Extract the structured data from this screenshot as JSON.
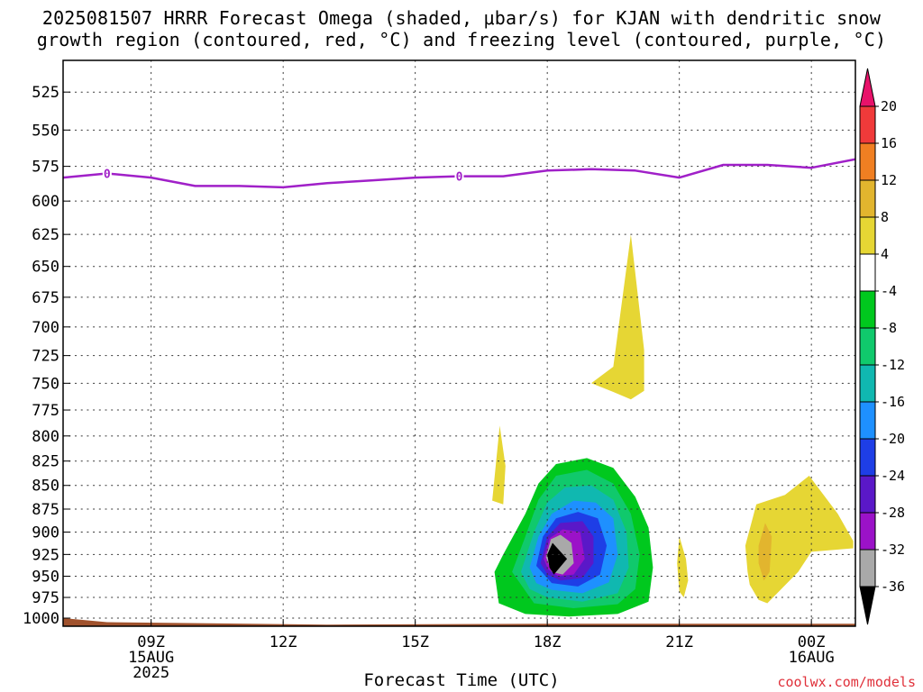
{
  "title_lines": [
    "2025081507 HRRR Forecast Omega (shaded, μbar/s) for KJAN with dendritic snow",
    "growth region (contoured, red, °C) and freezing level (contoured, purple, °C)"
  ],
  "credit": "coolwx.com/models",
  "chart_data": {
    "type": "contour",
    "title": "2025081507 HRRR Forecast Omega (shaded, μbar/s) for KJAN with dendritic snow growth region (contoured, red, °C) and freezing level (contoured, purple, °C)",
    "xlabel": "Forecast Time (UTC)",
    "ylabel": "",
    "x_hours_range": [
      7,
      25
    ],
    "y_range_hpa": [
      1010,
      505
    ],
    "y_ticks": [
      525,
      550,
      575,
      600,
      625,
      650,
      675,
      700,
      725,
      750,
      775,
      800,
      825,
      850,
      875,
      900,
      925,
      950,
      975,
      1000
    ],
    "x_ticks": [
      {
        "hour": 9,
        "lines": [
          "09Z",
          "15AUG",
          "2025"
        ]
      },
      {
        "hour": 12,
        "lines": [
          "12Z"
        ]
      },
      {
        "hour": 15,
        "lines": [
          "15Z"
        ]
      },
      {
        "hour": 18,
        "lines": [
          "18Z"
        ]
      },
      {
        "hour": 21,
        "lines": [
          "21Z"
        ]
      },
      {
        "hour": 24,
        "lines": [
          "00Z",
          "16AUG"
        ]
      }
    ],
    "grid": true,
    "colorbar": {
      "labels": [
        "20",
        "16",
        "12",
        "8",
        "4",
        "-4",
        "-8",
        "-12",
        "-16",
        "-20",
        "-24",
        "-28",
        "-32",
        "-36"
      ],
      "colors": [
        "#e8126a",
        "#f03a3a",
        "#f07f22",
        "#e2b52e",
        "#e6d634",
        "#ffffff",
        "#00c81e",
        "#10c96c",
        "#10b8b0",
        "#1e90ff",
        "#1e3ee6",
        "#5a18c8",
        "#9b12c8",
        "#a9a9a9",
        "#000000"
      ]
    },
    "freezing_level": {
      "label": "0",
      "points": [
        [
          7,
          583
        ],
        [
          8,
          580
        ],
        [
          9,
          583
        ],
        [
          10,
          589
        ],
        [
          11,
          589
        ],
        [
          12,
          590
        ],
        [
          13,
          587
        ],
        [
          14,
          585
        ],
        [
          15,
          583
        ],
        [
          16,
          582
        ],
        [
          17,
          582
        ],
        [
          18,
          578
        ],
        [
          19,
          577
        ],
        [
          20,
          578
        ],
        [
          21,
          583
        ],
        [
          22,
          574
        ],
        [
          23,
          574
        ],
        [
          24,
          576
        ],
        [
          25,
          570
        ]
      ]
    },
    "omega_regions": [
      {
        "value": "4",
        "color": "#e6d634",
        "points": [
          [
            19.0,
            750
          ],
          [
            19.5,
            735
          ],
          [
            19.9,
            625
          ],
          [
            20.2,
            720
          ],
          [
            20.2,
            757
          ],
          [
            19.9,
            765
          ],
          [
            19.5,
            758
          ]
        ]
      },
      {
        "value": "4",
        "color": "#e6d634",
        "points": [
          [
            16.75,
            866
          ],
          [
            16.92,
            790
          ],
          [
            17.05,
            830
          ],
          [
            17.0,
            870
          ]
        ]
      },
      {
        "value": "4",
        "color": "#e6d634",
        "points": [
          [
            20.95,
            935
          ],
          [
            21.0,
            905
          ],
          [
            21.15,
            930
          ],
          [
            21.2,
            955
          ],
          [
            21.1,
            975
          ],
          [
            21.0,
            968
          ]
        ]
      },
      {
        "value": "4",
        "color": "#e6d634",
        "points": [
          [
            22.55,
            945
          ],
          [
            22.5,
            915
          ],
          [
            22.75,
            870
          ],
          [
            23.4,
            860
          ],
          [
            23.95,
            840
          ],
          [
            24.6,
            880
          ],
          [
            24.95,
            910
          ],
          [
            24.95,
            918
          ],
          [
            24.0,
            922
          ],
          [
            23.7,
            945
          ],
          [
            23.0,
            982
          ],
          [
            22.8,
            978
          ],
          [
            22.6,
            960
          ]
        ]
      },
      {
        "value": "8",
        "color": "#e2b52e",
        "points": [
          [
            22.8,
            915
          ],
          [
            22.95,
            890
          ],
          [
            23.1,
            905
          ],
          [
            23.05,
            945
          ],
          [
            22.92,
            955
          ],
          [
            22.8,
            935
          ]
        ]
      },
      {
        "value": "-4",
        "color": "#00c81e",
        "points": [
          [
            16.8,
            945
          ],
          [
            17.0,
            925
          ],
          [
            17.5,
            880
          ],
          [
            17.8,
            848
          ],
          [
            18.2,
            828
          ],
          [
            18.9,
            822
          ],
          [
            19.5,
            832
          ],
          [
            20.0,
            862
          ],
          [
            20.3,
            895
          ],
          [
            20.4,
            940
          ],
          [
            20.3,
            980
          ],
          [
            19.6,
            995
          ],
          [
            18.5,
            998
          ],
          [
            17.5,
            995
          ],
          [
            16.9,
            982
          ]
        ]
      },
      {
        "value": "-8",
        "color": "#10c96c",
        "points": [
          [
            17.2,
            945
          ],
          [
            17.5,
            905
          ],
          [
            17.8,
            865
          ],
          [
            18.2,
            840
          ],
          [
            18.9,
            834
          ],
          [
            19.5,
            848
          ],
          [
            19.9,
            880
          ],
          [
            20.1,
            925
          ],
          [
            20.0,
            965
          ],
          [
            19.6,
            983
          ],
          [
            18.6,
            988
          ],
          [
            17.7,
            982
          ]
        ]
      },
      {
        "value": "-12",
        "color": "#10b8b0",
        "points": [
          [
            17.4,
            945
          ],
          [
            17.7,
            900
          ],
          [
            18.0,
            868
          ],
          [
            18.4,
            852
          ],
          [
            19.0,
            850
          ],
          [
            19.5,
            865
          ],
          [
            19.8,
            900
          ],
          [
            19.85,
            940
          ],
          [
            19.6,
            970
          ],
          [
            18.8,
            980
          ],
          [
            18.0,
            975
          ],
          [
            17.6,
            965
          ]
        ]
      },
      {
        "value": "-16",
        "color": "#1e90ff",
        "points": [
          [
            17.6,
            940
          ],
          [
            17.8,
            905
          ],
          [
            18.1,
            880
          ],
          [
            18.6,
            866
          ],
          [
            19.1,
            868
          ],
          [
            19.5,
            885
          ],
          [
            19.6,
            925
          ],
          [
            19.4,
            957
          ],
          [
            18.8,
            970
          ],
          [
            18.1,
            966
          ],
          [
            17.75,
            958
          ]
        ]
      },
      {
        "value": "-20",
        "color": "#1e3ee6",
        "points": [
          [
            17.75,
            938
          ],
          [
            17.9,
            905
          ],
          [
            18.2,
            885
          ],
          [
            18.7,
            878
          ],
          [
            19.15,
            885
          ],
          [
            19.35,
            915
          ],
          [
            19.2,
            948
          ],
          [
            18.7,
            962
          ],
          [
            18.1,
            958
          ]
        ]
      },
      {
        "value": "-24",
        "color": "#5a18c8",
        "points": [
          [
            17.85,
            935
          ],
          [
            18.0,
            905
          ],
          [
            18.3,
            890
          ],
          [
            18.8,
            888
          ],
          [
            19.05,
            905
          ],
          [
            19.05,
            935
          ],
          [
            18.8,
            952
          ],
          [
            18.3,
            955
          ],
          [
            18.0,
            948
          ]
        ]
      },
      {
        "value": "-28",
        "color": "#9b12c8",
        "points": [
          [
            17.92,
            930
          ],
          [
            18.05,
            907
          ],
          [
            18.35,
            897
          ],
          [
            18.75,
            900
          ],
          [
            18.85,
            930
          ],
          [
            18.6,
            948
          ],
          [
            18.25,
            950
          ],
          [
            18.02,
            942
          ]
        ]
      },
      {
        "value": "-32",
        "color": "#a9a9a9",
        "points": [
          [
            17.97,
            928
          ],
          [
            18.08,
            908
          ],
          [
            18.3,
            903
          ],
          [
            18.55,
            912
          ],
          [
            18.6,
            935
          ],
          [
            18.35,
            948
          ],
          [
            18.1,
            945
          ]
        ]
      },
      {
        "value": "-36",
        "color": "#000000",
        "points": [
          [
            18.0,
            925
          ],
          [
            18.12,
            912
          ],
          [
            18.45,
            930
          ],
          [
            18.15,
            948
          ],
          [
            18.05,
            940
          ]
        ]
      }
    ],
    "terrain": {
      "color": "#a0522d",
      "points": [
        [
          7,
          1000
        ],
        [
          8,
          1005
        ],
        [
          13,
          1008
        ],
        [
          18,
          1007
        ],
        [
          22,
          1007
        ],
        [
          25,
          1007
        ]
      ]
    }
  }
}
